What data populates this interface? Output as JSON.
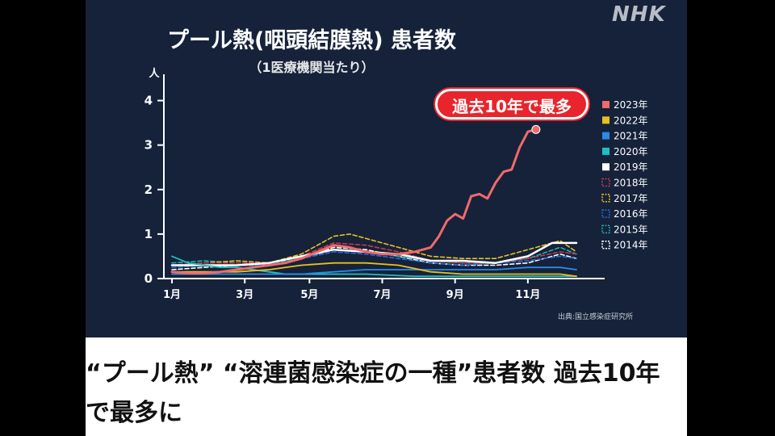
{
  "logo": "NHK",
  "headline": "“プール熱” “溶連菌感染症の一種”患者数 過去10年で最多に",
  "chart_data": {
    "type": "line",
    "title": "プール熱(咽頭結膜熱) 患者数",
    "subtitle": "（1医療機関当たり）",
    "ylabel": "人",
    "xlabel": "",
    "ylim": [
      0,
      4.5
    ],
    "xlim": [
      1,
      53
    ],
    "yticks": [
      0,
      1,
      2,
      3,
      4
    ],
    "xticks": [
      {
        "week": 2,
        "label": "1月"
      },
      {
        "week": 11,
        "label": "3月"
      },
      {
        "week": 19,
        "label": "5月"
      },
      {
        "week": 28,
        "label": "7月"
      },
      {
        "week": 37,
        "label": "9月"
      },
      {
        "week": 46,
        "label": "11月"
      }
    ],
    "annotation": "過去10年で最多",
    "source": "出典:国立感染症研究所",
    "legend_position": "right",
    "grid": false,
    "series": [
      {
        "name": "2023年",
        "color": "#f06a6a",
        "style": "solid",
        "width": 3,
        "x": [
          2,
          4,
          6,
          8,
          10,
          12,
          14,
          16,
          18,
          20,
          22,
          24,
          26,
          28,
          30,
          32,
          34,
          35,
          36,
          37,
          38,
          39,
          40,
          41,
          42,
          43,
          44,
          45,
          46,
          47
        ],
        "y": [
          0.15,
          0.12,
          0.12,
          0.15,
          0.2,
          0.25,
          0.3,
          0.35,
          0.45,
          0.6,
          0.75,
          0.7,
          0.6,
          0.55,
          0.55,
          0.6,
          0.7,
          0.95,
          1.3,
          1.45,
          1.35,
          1.85,
          1.9,
          1.8,
          2.15,
          2.4,
          2.45,
          2.95,
          3.3,
          3.35
        ]
      },
      {
        "name": "2022年",
        "color": "#e8c020",
        "style": "solid",
        "width": 1.8,
        "x": [
          2,
          6,
          10,
          14,
          18,
          22,
          26,
          30,
          34,
          38,
          42,
          46,
          50,
          52
        ],
        "y": [
          0.15,
          0.15,
          0.15,
          0.2,
          0.3,
          0.35,
          0.35,
          0.3,
          0.15,
          0.1,
          0.1,
          0.1,
          0.1,
          0.05
        ]
      },
      {
        "name": "2021年",
        "color": "#2a8ae8",
        "style": "solid",
        "width": 1.8,
        "x": [
          2,
          6,
          10,
          14,
          18,
          22,
          26,
          30,
          34,
          38,
          42,
          46,
          50,
          52
        ],
        "y": [
          0.1,
          0.1,
          0.1,
          0.1,
          0.1,
          0.15,
          0.2,
          0.2,
          0.2,
          0.2,
          0.2,
          0.25,
          0.25,
          0.2
        ]
      },
      {
        "name": "2020年",
        "color": "#20c0c0",
        "style": "solid",
        "width": 1.8,
        "x": [
          2,
          4,
          6,
          8,
          10,
          12,
          14,
          16,
          20,
          26,
          32,
          38,
          44,
          50,
          52
        ],
        "y": [
          0.5,
          0.35,
          0.3,
          0.25,
          0.25,
          0.2,
          0.15,
          0.1,
          0.1,
          0.1,
          0.05,
          0.05,
          0.05,
          0.05,
          0.05
        ]
      },
      {
        "name": "2019年",
        "color": "#ffffff",
        "style": "solid",
        "width": 2.5,
        "x": [
          2,
          6,
          10,
          14,
          18,
          22,
          26,
          30,
          34,
          38,
          42,
          46,
          49,
          52
        ],
        "y": [
          0.3,
          0.3,
          0.3,
          0.35,
          0.5,
          0.65,
          0.6,
          0.55,
          0.4,
          0.4,
          0.35,
          0.5,
          0.8,
          0.8
        ]
      },
      {
        "name": "2018年",
        "color": "#c23a4a",
        "style": "dashed",
        "width": 1.6,
        "x": [
          2,
          6,
          10,
          14,
          18,
          22,
          26,
          30,
          34,
          38,
          42,
          46,
          50,
          52
        ],
        "y": [
          0.3,
          0.35,
          0.35,
          0.35,
          0.5,
          0.8,
          0.75,
          0.6,
          0.4,
          0.35,
          0.35,
          0.45,
          0.6,
          0.55
        ]
      },
      {
        "name": "2017年",
        "color": "#e8c020",
        "style": "dashed",
        "width": 1.6,
        "x": [
          2,
          6,
          10,
          14,
          18,
          22,
          24,
          26,
          30,
          34,
          38,
          42,
          46,
          50,
          52
        ],
        "y": [
          0.3,
          0.35,
          0.4,
          0.35,
          0.55,
          0.95,
          1.0,
          0.9,
          0.7,
          0.5,
          0.45,
          0.45,
          0.65,
          0.85,
          0.6
        ]
      },
      {
        "name": "2016年",
        "color": "#2a6ad8",
        "style": "dashed",
        "width": 1.6,
        "x": [
          2,
          6,
          10,
          14,
          18,
          22,
          26,
          30,
          34,
          38,
          42,
          46,
          50,
          52
        ],
        "y": [
          0.25,
          0.3,
          0.3,
          0.3,
          0.45,
          0.6,
          0.55,
          0.45,
          0.35,
          0.3,
          0.35,
          0.4,
          0.5,
          0.45
        ]
      },
      {
        "name": "2015年",
        "color": "#20b0b0",
        "style": "dashed",
        "width": 1.6,
        "x": [
          2,
          6,
          10,
          14,
          18,
          22,
          26,
          30,
          34,
          38,
          42,
          46,
          50,
          52
        ],
        "y": [
          0.35,
          0.4,
          0.35,
          0.35,
          0.45,
          0.65,
          0.6,
          0.5,
          0.4,
          0.35,
          0.35,
          0.45,
          0.7,
          0.55
        ]
      },
      {
        "name": "2014年",
        "color": "#ffffff",
        "style": "dashed",
        "width": 1.6,
        "x": [
          2,
          6,
          10,
          14,
          18,
          22,
          26,
          30,
          34,
          38,
          42,
          46,
          50,
          52
        ],
        "y": [
          0.2,
          0.25,
          0.3,
          0.3,
          0.45,
          0.7,
          0.65,
          0.5,
          0.35,
          0.3,
          0.3,
          0.35,
          0.55,
          0.45
        ]
      }
    ]
  }
}
